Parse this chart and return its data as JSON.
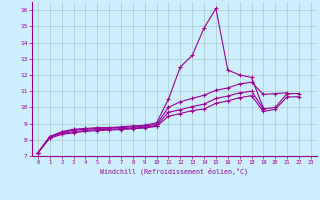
{
  "background_color": "#cceeff",
  "grid_color": "#aacccc",
  "line_color": "#990099",
  "xlabel": "Windchill (Refroidissement éolien,°C)",
  "xlim": [
    -0.5,
    23.5
  ],
  "ylim": [
    7,
    16.5
  ],
  "xticks": [
    0,
    1,
    2,
    3,
    4,
    5,
    6,
    7,
    8,
    9,
    10,
    11,
    12,
    13,
    14,
    15,
    16,
    17,
    18,
    19,
    20,
    21,
    22,
    23
  ],
  "yticks": [
    7,
    8,
    9,
    10,
    11,
    12,
    13,
    14,
    15,
    16
  ],
  "curves": [
    {
      "x": [
        0,
        1,
        2,
        3,
        4,
        5,
        6,
        7,
        8,
        9,
        10,
        11,
        12,
        13,
        14,
        15,
        16,
        17,
        18,
        19
      ],
      "y": [
        7.2,
        8.2,
        8.5,
        8.65,
        8.7,
        8.75,
        8.75,
        8.8,
        8.85,
        8.9,
        9.05,
        10.5,
        12.5,
        13.2,
        14.9,
        16.1,
        12.3,
        12.0,
        11.85,
        9.95
      ]
    },
    {
      "x": [
        0,
        1,
        2,
        3,
        4,
        5,
        6,
        7,
        8,
        9,
        10,
        11,
        12,
        13,
        14,
        15,
        16,
        17,
        18,
        19,
        20,
        21
      ],
      "y": [
        7.2,
        8.2,
        8.45,
        8.6,
        8.65,
        8.7,
        8.72,
        8.75,
        8.8,
        8.85,
        8.95,
        10.0,
        10.35,
        10.55,
        10.75,
        11.05,
        11.2,
        11.45,
        11.55,
        10.8,
        10.85,
        10.9
      ]
    },
    {
      "x": [
        0,
        1,
        2,
        3,
        4,
        5,
        6,
        7,
        8,
        9,
        10,
        11,
        12,
        13,
        14,
        15,
        16,
        17,
        18,
        19,
        20,
        21,
        22
      ],
      "y": [
        7.2,
        8.15,
        8.4,
        8.5,
        8.58,
        8.62,
        8.65,
        8.68,
        8.72,
        8.77,
        8.88,
        9.7,
        9.85,
        10.05,
        10.2,
        10.55,
        10.7,
        10.9,
        11.0,
        9.9,
        10.0,
        10.85,
        10.85
      ]
    },
    {
      "x": [
        0,
        1,
        2,
        3,
        4,
        5,
        6,
        7,
        8,
        9,
        10,
        11,
        12,
        13,
        14,
        15,
        16,
        17,
        18,
        19,
        20,
        21,
        22
      ],
      "y": [
        7.2,
        8.1,
        8.33,
        8.43,
        8.52,
        8.57,
        8.6,
        8.63,
        8.68,
        8.73,
        8.83,
        9.45,
        9.62,
        9.8,
        9.9,
        10.25,
        10.4,
        10.6,
        10.72,
        9.75,
        9.88,
        10.65,
        10.65
      ]
    }
  ]
}
